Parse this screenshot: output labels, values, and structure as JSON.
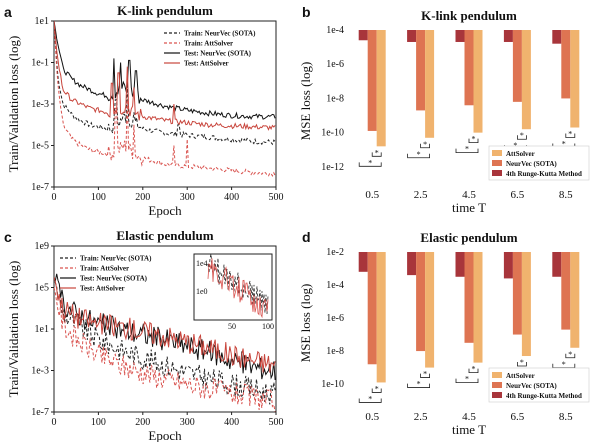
{
  "figure": {
    "panel_letters": [
      "a",
      "b",
      "c",
      "d"
    ]
  },
  "chart_data": [
    {
      "panel": "a",
      "type": "line",
      "title": "K-link pendulum",
      "xlabel": "Epoch",
      "ylabel": "Train/Validation loss (log)",
      "xlim": [
        0,
        500
      ],
      "ylim_log10": [
        -7,
        1
      ],
      "x_ticks": [
        0,
        100,
        200,
        300,
        400,
        500
      ],
      "x_tick_labels": [
        "0",
        "100",
        "200",
        "300",
        "400",
        "500"
      ],
      "y_ticks_log10": [
        1,
        -1,
        -3,
        -5,
        -7
      ],
      "y_tick_labels": [
        "1e1",
        "1e-1",
        "1e-3",
        "1e-5",
        "1e-7"
      ],
      "legend_position": "top-right",
      "series": [
        {
          "name": "Train: NeurVec (SOTA)",
          "color": "#222222",
          "dash": "dashed",
          "x": [
            0,
            8,
            20,
            40,
            60,
            80,
            100,
            120,
            140,
            160,
            180,
            200,
            250,
            300,
            350,
            400,
            450,
            500
          ],
          "y_log10": [
            1,
            -1.6,
            -3.0,
            -3.5,
            -3.8,
            -4.0,
            -4.1,
            -4.2,
            -4.0,
            -3.6,
            -3.9,
            -4.2,
            -4.4,
            -4.5,
            -4.6,
            -4.7,
            -4.8,
            -4.85
          ],
          "spikes": [
            [
              140,
              -2.8
            ],
            [
              165,
              -2.0
            ],
            [
              180,
              -3.4
            ],
            [
              280,
              -4.0
            ]
          ]
        },
        {
          "name": "Train: AttSolver",
          "color": "#d9534f",
          "dash": "dashed",
          "x": [
            0,
            8,
            20,
            40,
            60,
            80,
            100,
            120,
            140,
            160,
            180,
            200,
            250,
            300,
            350,
            400,
            450,
            500
          ],
          "y_log10": [
            1,
            -2.0,
            -4.0,
            -4.7,
            -5.0,
            -5.2,
            -5.3,
            -5.4,
            -5.3,
            -5.0,
            -5.4,
            -5.6,
            -5.9,
            -6.0,
            -6.1,
            -6.2,
            -6.3,
            -6.35
          ],
          "spikes": [
            [
              140,
              -3.2
            ],
            [
              165,
              -2.8
            ],
            [
              180,
              -4.0
            ],
            [
              270,
              -5.0
            ],
            [
              300,
              -4.7
            ]
          ]
        },
        {
          "name": "Test: NeurVec (SOTA)",
          "color": "#111111",
          "dash": "solid",
          "x": [
            0,
            8,
            20,
            40,
            60,
            80,
            100,
            120,
            140,
            160,
            180,
            200,
            250,
            300,
            350,
            400,
            450,
            500
          ],
          "y_log10": [
            1,
            0.0,
            -1.3,
            -1.8,
            -2.1,
            -2.3,
            -2.5,
            -2.6,
            -2.4,
            -2.2,
            -2.5,
            -2.8,
            -3.1,
            -3.3,
            -3.45,
            -3.55,
            -3.6,
            -3.62
          ],
          "spikes": [
            [
              135,
              -0.8
            ],
            [
              150,
              -1.0
            ],
            [
              170,
              -0.9
            ],
            [
              185,
              -1.4
            ]
          ]
        },
        {
          "name": "Test: AttSolver",
          "color": "#c8453c",
          "dash": "solid",
          "x": [
            0,
            8,
            20,
            40,
            60,
            80,
            100,
            120,
            140,
            160,
            180,
            200,
            250,
            300,
            350,
            400,
            450,
            500
          ],
          "y_log10": [
            1,
            -0.8,
            -2.3,
            -2.8,
            -3.0,
            -3.2,
            -3.3,
            -3.4,
            -3.3,
            -3.1,
            -3.4,
            -3.6,
            -3.8,
            -3.9,
            -4.0,
            -4.05,
            -4.1,
            -4.15
          ],
          "spikes": [
            [
              130,
              -2.0
            ],
            [
              145,
              -1.5
            ],
            [
              165,
              -1.2
            ],
            [
              180,
              -2.2
            ],
            [
              270,
              -3.0
            ]
          ]
        }
      ]
    },
    {
      "panel": "b",
      "type": "bar",
      "title": "K-link pendulum",
      "xlabel": "time T",
      "ylabel": "MSE loss (log)",
      "categories": [
        "0.5",
        "2.5",
        "4.5",
        "6.5",
        "8.5"
      ],
      "ylim_log10": [
        -12.3,
        -4
      ],
      "y_tick_labels": [
        "1e-4",
        "1e-6",
        "1e-8",
        "1e-10",
        "1e-12"
      ],
      "y_ticks_log10": [
        -4,
        -6,
        -8,
        -10,
        -12
      ],
      "legend_position": "bottom-right",
      "significance_marker": "*",
      "series": [
        {
          "name": "AttSolver",
          "color": "#f0b36e",
          "values_log10": [
            -10.8,
            -10.3,
            -10.0,
            -9.8,
            -9.7
          ]
        },
        {
          "name": "NeurVec (SOTA)",
          "color": "#de7452",
          "values_log10": [
            -9.9,
            -8.7,
            -8.4,
            -8.2,
            -8.0
          ]
        },
        {
          "name": "4th Runge-Kutta Method",
          "color": "#a8353b",
          "values_log10": [
            -4.6,
            -4.7,
            -4.7,
            -4.7,
            -4.8
          ]
        }
      ]
    },
    {
      "panel": "c",
      "type": "line",
      "title": "Elastic pendulum",
      "xlabel": "Epoch",
      "ylabel": "Train/Validation loss (log)",
      "xlim": [
        0,
        500
      ],
      "ylim_log10": [
        -7,
        9
      ],
      "x_ticks": [
        0,
        100,
        200,
        300,
        400,
        500
      ],
      "x_tick_labels": [
        "0",
        "100",
        "200",
        "300",
        "400",
        "500"
      ],
      "y_ticks_log10": [
        9,
        5,
        1,
        -3,
        -7
      ],
      "y_tick_labels": [
        "1e9",
        "1e5",
        "1e1",
        "1e-3",
        "1e-7"
      ],
      "legend_position": "top-left",
      "inset": {
        "xlim": [
          0,
          100
        ],
        "x_tick_labels": [
          "50",
          "100"
        ],
        "y_tick_labels": [
          "1e4",
          "1e0"
        ]
      },
      "series": [
        {
          "name": "Train: NeurVec (SOTA)",
          "color": "#222222",
          "dash": "dashed",
          "x": [
            0,
            20,
            50,
            100,
            150,
            200,
            250,
            300,
            350,
            400,
            450,
            500
          ],
          "y_log10": [
            6,
            2.5,
            1.5,
            0.0,
            -1.0,
            -1.8,
            -2.5,
            -3.2,
            -3.8,
            -4.3,
            -4.8,
            -5.3
          ]
        },
        {
          "name": "Train: AttSolver",
          "color": "#d9534f",
          "dash": "dashed",
          "x": [
            0,
            20,
            50,
            100,
            150,
            200,
            250,
            300,
            350,
            400,
            450,
            500
          ],
          "y_log10": [
            5,
            1.5,
            0.0,
            -1.5,
            -2.5,
            -3.2,
            -3.8,
            -4.3,
            -4.8,
            -5.2,
            -5.6,
            -6.0
          ]
        },
        {
          "name": "Test: NeurVec (SOTA)",
          "color": "#111111",
          "dash": "solid",
          "x": [
            0,
            20,
            50,
            100,
            150,
            200,
            250,
            300,
            350,
            400,
            450,
            500
          ],
          "y_log10": [
            6,
            3.5,
            2.5,
            1.5,
            1.0,
            0.5,
            0.0,
            -0.6,
            -1.2,
            -2.0,
            -2.6,
            -3.0
          ]
        },
        {
          "name": "Test: AttSolver",
          "color": "#c8453c",
          "dash": "solid",
          "x": [
            0,
            20,
            50,
            100,
            150,
            200,
            250,
            300,
            350,
            400,
            450,
            500
          ],
          "y_log10": [
            6,
            3.0,
            2.2,
            1.5,
            1.2,
            0.8,
            0.3,
            -0.2,
            -0.8,
            -1.5,
            -2.0,
            -2.5
          ]
        }
      ]
    },
    {
      "panel": "d",
      "type": "bar",
      "title": "Elastic pendulum",
      "xlabel": "time T",
      "ylabel": "MSE loss (log)",
      "categories": [
        "0.5",
        "2.5",
        "4.5",
        "6.5",
        "8.5"
      ],
      "ylim_log10": [
        -10.6,
        -2
      ],
      "y_tick_labels": [
        "1e-2",
        "1e-4",
        "1e-6",
        "1e-8",
        "1e-10"
      ],
      "y_ticks_log10": [
        -2,
        -4,
        -6,
        -8,
        -10
      ],
      "legend_position": "bottom-right",
      "significance_marker": "*",
      "series": [
        {
          "name": "AttSolver",
          "color": "#f0b36e",
          "values_log10": [
            -9.9,
            -9.0,
            -8.7,
            -8.3,
            -7.8
          ]
        },
        {
          "name": "NeurVec (SOTA)",
          "color": "#de7452",
          "values_log10": [
            -8.8,
            -8.0,
            -7.5,
            -7.0,
            -6.7
          ]
        },
        {
          "name": "4th Runge-Kutta Method",
          "color": "#a8353b",
          "values_log10": [
            -3.2,
            -3.4,
            -3.5,
            -3.6,
            -3.5
          ]
        }
      ]
    }
  ]
}
